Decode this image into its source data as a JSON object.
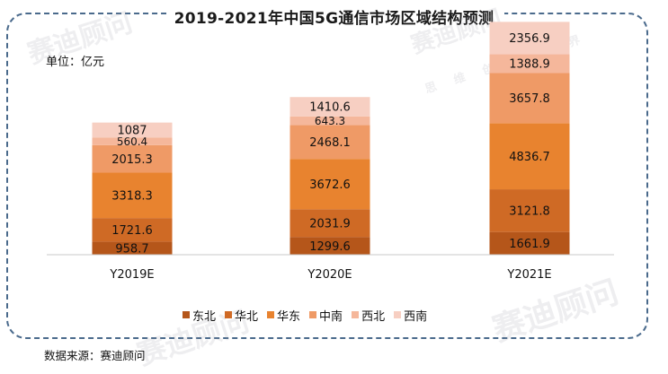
{
  "page": {
    "title": "2019-2021年中国5G通信市场区域结构预测",
    "unit_label": "单位：亿元",
    "source": "数据来源：赛迪顾问",
    "watermark": "赛迪顾问",
    "watermark_sub": "思 维 创 造 世 界"
  },
  "chart_data": {
    "type": "bar",
    "stacked": true,
    "title": "2019-2021年中国5G通信市场区域结构预测",
    "ylabel": "单位：亿元",
    "categories": [
      "Y2019E",
      "Y2020E",
      "Y2021E"
    ],
    "series": [
      {
        "name": "东北",
        "color": "#b5561a",
        "values": [
          958.7,
          1299.6,
          1661.9
        ],
        "labels": [
          "958.7",
          "1299.6",
          "1661.9"
        ]
      },
      {
        "name": "华北",
        "color": "#cf6a25",
        "values": [
          1721.6,
          2031.9,
          3121.8
        ],
        "labels": [
          "1721.6",
          "2031.9",
          "3121.8"
        ]
      },
      {
        "name": "华东",
        "color": "#e8832f",
        "values": [
          3318.3,
          3672.6,
          4836.7
        ],
        "labels": [
          "3318.3",
          "3672.6",
          "4836.7"
        ]
      },
      {
        "name": "中南",
        "color": "#ef9a66",
        "values": [
          2015.3,
          2468.1,
          3657.8
        ],
        "labels": [
          "2015.3",
          "2468.1",
          "3657.8"
        ]
      },
      {
        "name": "西北",
        "color": "#f5b79b",
        "values": [
          560.4,
          643.3,
          1388.9
        ],
        "labels": [
          "560.4",
          "643.3",
          "1388.9"
        ]
      },
      {
        "name": "西南",
        "color": "#f7cfc2",
        "values": [
          1087,
          1410.6,
          2356.9
        ],
        "labels": [
          "1087",
          "1410.6",
          "2356.9"
        ]
      }
    ],
    "legend": "bottom",
    "grid": false
  }
}
